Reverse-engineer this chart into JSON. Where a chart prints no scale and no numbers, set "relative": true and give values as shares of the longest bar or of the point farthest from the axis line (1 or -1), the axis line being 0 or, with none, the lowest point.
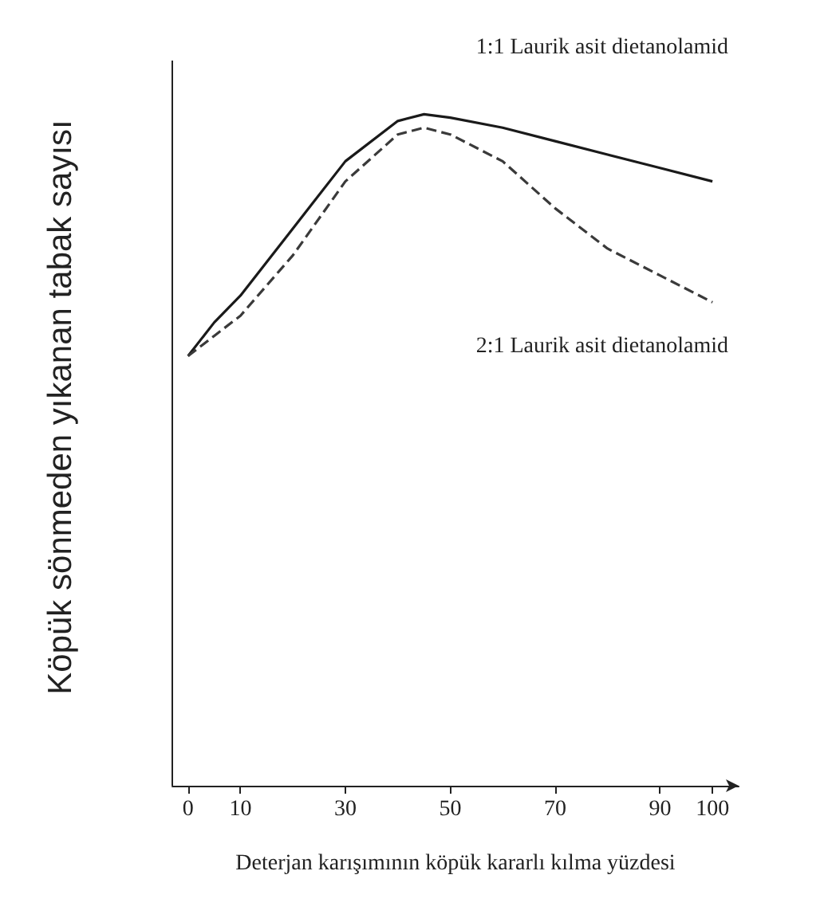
{
  "chart_data": {
    "type": "line",
    "relative": true,
    "xlabel": "Deterjan karışımının köpük kararlı kılma yüzdesi",
    "ylabel": "Köpük sönmeden yıkanan tabak sayısı",
    "xlim": [
      -3,
      105
    ],
    "xticks": [
      0,
      10,
      30,
      50,
      70,
      90,
      100
    ],
    "marker": "none",
    "grid": false,
    "legend": false,
    "series": [
      {
        "name": "1:1 Laurik asit dietanolamid",
        "color": "#1a1a1a",
        "line_style": "solid",
        "x": [
          0,
          5,
          10,
          20,
          30,
          40,
          45,
          50,
          60,
          70,
          80,
          90,
          100
        ],
        "values": [
          0.64,
          0.69,
          0.73,
          0.83,
          0.93,
          0.99,
          1,
          0.995,
          0.98,
          0.96,
          0.94,
          0.92,
          0.9
        ]
      },
      {
        "name": "2:1 Laurik asit dietanolamid",
        "color": "#3a3a3a",
        "line_style": "dashed",
        "x": [
          0,
          5,
          10,
          20,
          30,
          40,
          45,
          50,
          60,
          70,
          80,
          90,
          100
        ],
        "values": [
          0.64,
          0.67,
          0.7,
          0.79,
          0.9,
          0.97,
          0.98,
          0.97,
          0.93,
          0.86,
          0.8,
          0.76,
          0.72
        ]
      }
    ]
  }
}
